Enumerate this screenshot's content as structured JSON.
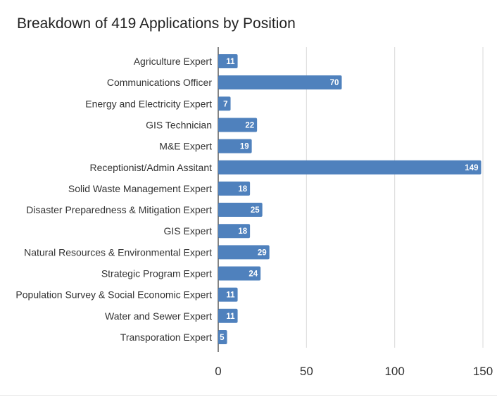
{
  "chart_data": {
    "type": "bar",
    "orientation": "horizontal",
    "title": "Breakdown of 419 Applications by Position",
    "xlabel": "",
    "ylabel": "",
    "categories": [
      "Agriculture Expert",
      "Communications Officer",
      "Energy and Electricity Expert",
      "GIS Technician",
      "M&E Expert",
      "Receptionist/Admin Assitant",
      "Solid Waste Management Expert",
      "Disaster Preparedness & Mitigation Expert",
      "GIS Expert",
      "Natural Resources & Environmental Expert",
      "Strategic Program Expert",
      "Population Survey & Social Economic Expert",
      "Water and Sewer Expert",
      "Transporation Expert"
    ],
    "values": [
      11,
      70,
      7,
      22,
      19,
      149,
      18,
      25,
      18,
      29,
      24,
      11,
      11,
      5
    ],
    "xlim": [
      0,
      150
    ],
    "ticks": [
      0,
      50,
      100,
      150
    ],
    "grid": true,
    "bar_color": "#4f81bd",
    "data_labels": true
  }
}
